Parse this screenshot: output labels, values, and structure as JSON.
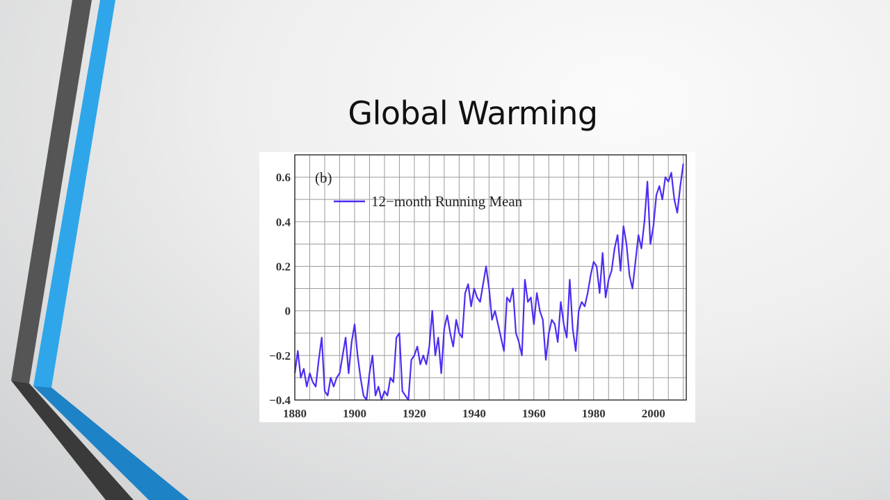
{
  "slide": {
    "title": "Global Warming"
  },
  "colors": {
    "series_line": "#4b2df2",
    "accent_blue": "#29a3e8",
    "accent_dark": "#4a4a4a",
    "accent_blue_dark": "#1b7fc4"
  },
  "chart_data": {
    "type": "line",
    "panel_label": "(b)",
    "title": "",
    "xlabel": "",
    "ylabel": "",
    "xlim": [
      1880,
      2011
    ],
    "ylim": [
      -0.4,
      0.7
    ],
    "grid": true,
    "legend_position": "top-left",
    "x_ticks": [
      1880,
      1900,
      1920,
      1940,
      1960,
      1980,
      2000
    ],
    "y_ticks": [
      {
        "value": 0.6,
        "label": "0.6"
      },
      {
        "value": 0.4,
        "label": "0.4"
      },
      {
        "value": 0.2,
        "label": "0.2"
      },
      {
        "value": 0,
        "label": "0"
      },
      {
        "value": -0.2,
        "label": "−0.2"
      },
      {
        "value": -0.4,
        "label": "−0.4"
      }
    ],
    "series": [
      {
        "name": "12−month Running Mean",
        "color": "#4b2df2",
        "x": [
          1880,
          1881,
          1882,
          1883,
          1884,
          1885,
          1886,
          1887,
          1888,
          1889,
          1890,
          1891,
          1892,
          1893,
          1894,
          1895,
          1896,
          1897,
          1898,
          1899,
          1900,
          1901,
          1902,
          1903,
          1904,
          1905,
          1906,
          1907,
          1908,
          1909,
          1910,
          1911,
          1912,
          1913,
          1914,
          1915,
          1916,
          1917,
          1918,
          1919,
          1920,
          1921,
          1922,
          1923,
          1924,
          1925,
          1926,
          1927,
          1928,
          1929,
          1930,
          1931,
          1932,
          1933,
          1934,
          1935,
          1936,
          1937,
          1938,
          1939,
          1940,
          1941,
          1942,
          1943,
          1944,
          1945,
          1946,
          1947,
          1948,
          1949,
          1950,
          1951,
          1952,
          1953,
          1954,
          1955,
          1956,
          1957,
          1958,
          1959,
          1960,
          1961,
          1962,
          1963,
          1964,
          1965,
          1966,
          1967,
          1968,
          1969,
          1970,
          1971,
          1972,
          1973,
          1974,
          1975,
          1976,
          1977,
          1978,
          1979,
          1980,
          1981,
          1982,
          1983,
          1984,
          1985,
          1986,
          1987,
          1988,
          1989,
          1990,
          1991,
          1992,
          1993,
          1994,
          1995,
          1996,
          1997,
          1998,
          1999,
          2000,
          2001,
          2002,
          2003,
          2004,
          2005,
          2006,
          2007,
          2008,
          2009,
          2010
        ],
        "y": [
          -0.28,
          -0.18,
          -0.3,
          -0.26,
          -0.34,
          -0.28,
          -0.32,
          -0.34,
          -0.22,
          -0.12,
          -0.36,
          -0.38,
          -0.3,
          -0.34,
          -0.3,
          -0.28,
          -0.2,
          -0.12,
          -0.28,
          -0.14,
          -0.06,
          -0.2,
          -0.3,
          -0.38,
          -0.4,
          -0.28,
          -0.2,
          -0.38,
          -0.34,
          -0.4,
          -0.36,
          -0.38,
          -0.3,
          -0.32,
          -0.12,
          -0.1,
          -0.36,
          -0.38,
          -0.4,
          -0.22,
          -0.2,
          -0.16,
          -0.24,
          -0.2,
          -0.24,
          -0.16,
          0.0,
          -0.2,
          -0.12,
          -0.28,
          -0.08,
          -0.02,
          -0.1,
          -0.16,
          -0.04,
          -0.1,
          -0.12,
          0.08,
          0.12,
          0.02,
          0.1,
          0.06,
          0.04,
          0.12,
          0.2,
          0.1,
          -0.04,
          0.0,
          -0.06,
          -0.12,
          -0.18,
          0.06,
          0.04,
          0.1,
          -0.1,
          -0.14,
          -0.2,
          0.14,
          0.04,
          0.06,
          -0.06,
          0.08,
          0.0,
          -0.04,
          -0.22,
          -0.1,
          -0.04,
          -0.06,
          -0.14,
          0.04,
          -0.06,
          -0.12,
          0.14,
          -0.08,
          -0.18,
          0.0,
          0.04,
          0.02,
          0.08,
          0.16,
          0.22,
          0.2,
          0.08,
          0.26,
          0.06,
          0.14,
          0.18,
          0.28,
          0.34,
          0.18,
          0.38,
          0.3,
          0.16,
          0.1,
          0.22,
          0.34,
          0.28,
          0.4,
          0.58,
          0.3,
          0.38,
          0.52,
          0.56,
          0.5,
          0.6,
          0.58,
          0.62,
          0.5,
          0.44,
          0.56,
          0.66
        ]
      }
    ]
  }
}
